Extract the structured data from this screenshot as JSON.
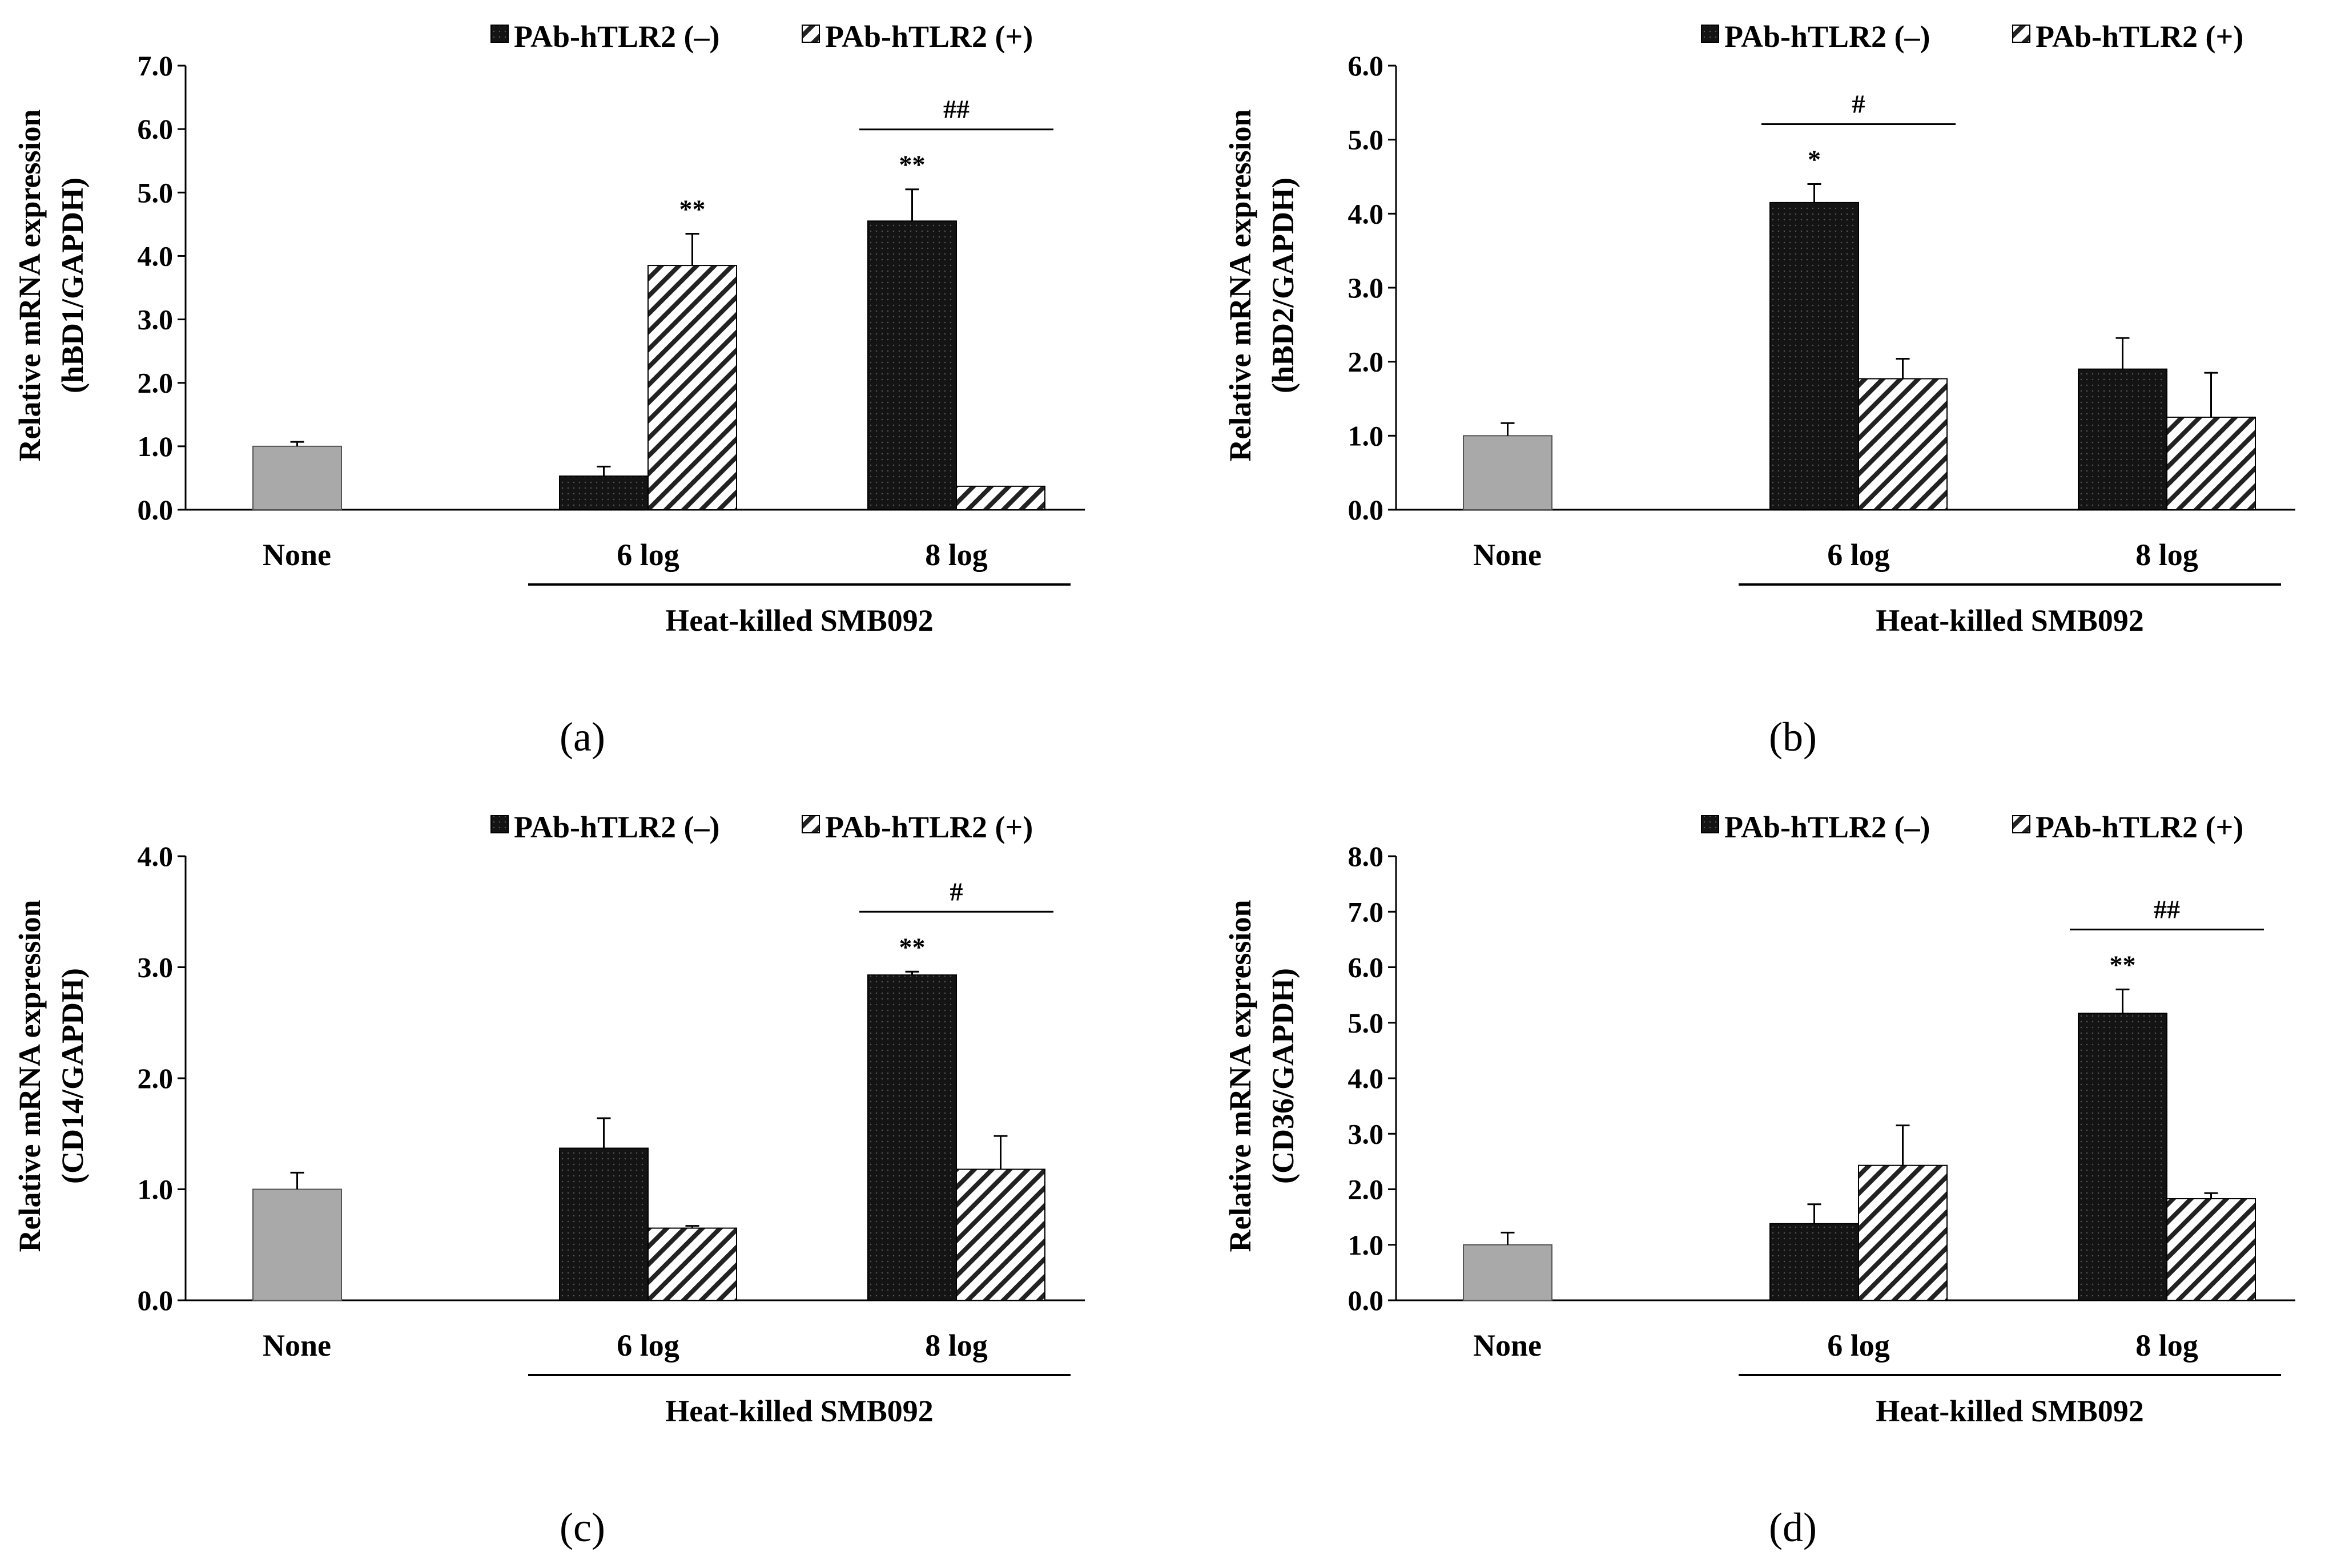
{
  "colors": {
    "control": "#a9a9a9",
    "dark": "#141414",
    "hatch_line": "#222222",
    "axis": "#000000"
  },
  "chart_data": [
    {
      "panel": "(a)",
      "type": "bar",
      "ylabel": [
        "Relative mRNA expression",
        "(hBD1/GAPDH)"
      ],
      "ylim": [
        0,
        7
      ],
      "yticks": [
        "0.0",
        "1.0",
        "2.0",
        "3.0",
        "4.0",
        "5.0",
        "6.0",
        "7.0"
      ],
      "categories": [
        "None",
        "6 log",
        "8 log"
      ],
      "group_label": "Heat-killed SMB092",
      "legend": [
        "PAb-hTLR2 (–)",
        "PAb-hTLR2 (+)"
      ],
      "control": {
        "value": 1.0,
        "error": 0.07
      },
      "series": [
        {
          "name": "PAb-hTLR2 (–)",
          "values": [
            null,
            0.53,
            4.55
          ],
          "errors": [
            null,
            0.15,
            0.5
          ]
        },
        {
          "name": "PAb-hTLR2 (+)",
          "values": [
            null,
            3.85,
            0.37
          ],
          "errors": [
            null,
            0.5,
            0.0
          ]
        }
      ],
      "annotations": [
        {
          "text": "**",
          "category": 1,
          "series": 1
        },
        {
          "text": "**",
          "category": 2,
          "series": 0
        }
      ],
      "bracket": {
        "text": "##",
        "category": 2
      }
    },
    {
      "panel": "(b)",
      "type": "bar",
      "ylabel": [
        "Relative mRNA expression",
        "(hBD2/GAPDH)"
      ],
      "ylim": [
        0,
        6
      ],
      "yticks": [
        "0.0",
        "1.0",
        "2.0",
        "3.0",
        "4.0",
        "5.0",
        "6.0"
      ],
      "categories": [
        "None",
        "6 log",
        "8 log"
      ],
      "group_label": "Heat-killed SMB092",
      "legend": [
        "PAb-hTLR2 (–)",
        "PAb-hTLR2 (+)"
      ],
      "control": {
        "value": 1.0,
        "error": 0.17
      },
      "series": [
        {
          "name": "PAb-hTLR2 (–)",
          "values": [
            null,
            4.15,
            1.9
          ],
          "errors": [
            null,
            0.25,
            0.42
          ]
        },
        {
          "name": "PAb-hTLR2 (+)",
          "values": [
            null,
            1.77,
            1.25
          ],
          "errors": [
            null,
            0.27,
            0.6
          ]
        }
      ],
      "annotations": [
        {
          "text": "*",
          "category": 1,
          "series": 0
        }
      ],
      "bracket": {
        "text": "#",
        "category": 1
      }
    },
    {
      "panel": "(c)",
      "type": "bar",
      "ylabel": [
        "Relative mRNA expression",
        "(CD14/GAPDH)"
      ],
      "ylim": [
        0,
        4
      ],
      "yticks": [
        "0.0",
        "1.0",
        "2.0",
        "3.0",
        "4.0"
      ],
      "categories": [
        "None",
        "6 log",
        "8 log"
      ],
      "group_label": "Heat-killed SMB092",
      "legend": [
        "PAb-hTLR2 (–)",
        "PAb-hTLR2 (+)"
      ],
      "control": {
        "value": 1.0,
        "error": 0.15
      },
      "series": [
        {
          "name": "PAb-hTLR2 (–)",
          "values": [
            null,
            1.37,
            2.93
          ],
          "errors": [
            null,
            0.27,
            0.03
          ]
        },
        {
          "name": "PAb-hTLR2 (+)",
          "values": [
            null,
            0.65,
            1.18
          ],
          "errors": [
            null,
            0.02,
            0.3
          ]
        }
      ],
      "annotations": [
        {
          "text": "**",
          "category": 2,
          "series": 0
        }
      ],
      "bracket": {
        "text": "#",
        "category": 2
      }
    },
    {
      "panel": "(d)",
      "type": "bar",
      "ylabel": [
        "Relative mRNA expression",
        "(CD36/GAPDH)"
      ],
      "ylim": [
        0,
        8
      ],
      "yticks": [
        "0.0",
        "1.0",
        "2.0",
        "3.0",
        "4.0",
        "5.0",
        "6.0",
        "7.0",
        "8.0"
      ],
      "categories": [
        "None",
        "6 log",
        "8 log"
      ],
      "group_label": "Heat-killed SMB092",
      "legend": [
        "PAb-hTLR2 (–)",
        "PAb-hTLR2 (+)"
      ],
      "control": {
        "value": 1.0,
        "error": 0.22
      },
      "series": [
        {
          "name": "PAb-hTLR2 (–)",
          "values": [
            null,
            1.38,
            5.17
          ],
          "errors": [
            null,
            0.35,
            0.43
          ]
        },
        {
          "name": "PAb-hTLR2 (+)",
          "values": [
            null,
            2.43,
            1.83
          ],
          "errors": [
            null,
            0.72,
            0.1
          ]
        }
      ],
      "annotations": [
        {
          "text": "**",
          "category": 2,
          "series": 0
        }
      ],
      "bracket": {
        "text": "##",
        "category": 2
      }
    }
  ]
}
